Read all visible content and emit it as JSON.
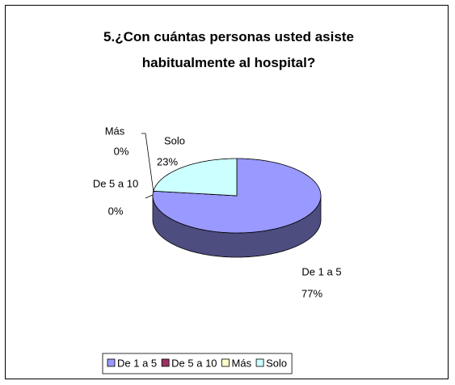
{
  "chart_data": {
    "type": "pie",
    "title": "5.¿Con cuántas personas usted asiste habitualmente al hospital?",
    "categories": [
      "De 1 a 5",
      "De 5 a 10",
      "Más",
      "Solo"
    ],
    "values": [
      77,
      0,
      0,
      23
    ],
    "value_labels": [
      "77%",
      "0%",
      "0%",
      "23%"
    ],
    "colors": [
      "#9999FF",
      "#993366",
      "#FFFFCC",
      "#CCFFFF"
    ],
    "legend": "bottom"
  }
}
